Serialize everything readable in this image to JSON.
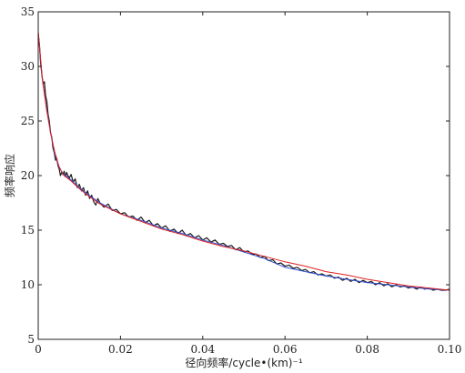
{
  "chart_data": {
    "type": "line",
    "xlabel": "径向频率/cycle•(km)⁻¹",
    "ylabel": "频率响应",
    "xlim": [
      0,
      0.1
    ],
    "ylim": [
      5,
      35
    ],
    "grid": false,
    "x_ticks": [
      "0",
      "0.02",
      "0.04",
      "0.06",
      "0.08",
      "0.10"
    ],
    "y_ticks": [
      "5",
      "10",
      "15",
      "20",
      "25",
      "30",
      "35"
    ],
    "series": [
      {
        "color": "#1a1a1a",
        "points": [
          [
            0.0,
            33.0
          ],
          [
            0.0003,
            32.0
          ],
          [
            0.0006,
            30.2
          ],
          [
            0.0009,
            29.2
          ],
          [
            0.0012,
            28.4
          ],
          [
            0.0015,
            28.6
          ],
          [
            0.0018,
            27.3
          ],
          [
            0.0021,
            26.8
          ],
          [
            0.0024,
            25.6
          ],
          [
            0.0027,
            25.0
          ],
          [
            0.003,
            23.9
          ],
          [
            0.0033,
            23.5
          ],
          [
            0.0036,
            22.5
          ],
          [
            0.0039,
            22.1
          ],
          [
            0.0042,
            21.4
          ],
          [
            0.0045,
            21.6
          ],
          [
            0.0048,
            20.9
          ],
          [
            0.0051,
            20.6
          ],
          [
            0.0054,
            20.0
          ],
          [
            0.0057,
            20.3
          ],
          [
            0.006,
            20.1
          ],
          [
            0.0063,
            20.4
          ],
          [
            0.0066,
            19.9
          ],
          [
            0.0069,
            20.3
          ],
          [
            0.0072,
            20.0
          ],
          [
            0.0076,
            19.8
          ],
          [
            0.008,
            20.1
          ],
          [
            0.0085,
            19.4
          ],
          [
            0.009,
            19.7
          ],
          [
            0.0095,
            18.9
          ],
          [
            0.01,
            19.2
          ],
          [
            0.0105,
            18.6
          ],
          [
            0.011,
            18.9
          ],
          [
            0.0115,
            18.2
          ],
          [
            0.012,
            18.6
          ],
          [
            0.0125,
            17.9
          ],
          [
            0.013,
            18.2
          ],
          [
            0.0135,
            17.6
          ],
          [
            0.014,
            17.3
          ],
          [
            0.0145,
            17.9
          ],
          [
            0.015,
            17.5
          ],
          [
            0.016,
            17.1
          ],
          [
            0.017,
            17.4
          ],
          [
            0.018,
            16.8
          ],
          [
            0.019,
            16.9
          ],
          [
            0.02,
            16.5
          ],
          [
            0.021,
            16.6
          ],
          [
            0.022,
            16.2
          ],
          [
            0.023,
            16.3
          ],
          [
            0.024,
            15.9
          ],
          [
            0.025,
            16.2
          ],
          [
            0.026,
            15.7
          ],
          [
            0.027,
            15.9
          ],
          [
            0.028,
            15.4
          ],
          [
            0.029,
            15.6
          ],
          [
            0.03,
            15.2
          ],
          [
            0.031,
            15.4
          ],
          [
            0.032,
            14.9
          ],
          [
            0.033,
            15.1
          ],
          [
            0.034,
            14.7
          ],
          [
            0.035,
            15.0
          ],
          [
            0.036,
            14.5
          ],
          [
            0.037,
            14.7
          ],
          [
            0.038,
            14.3
          ],
          [
            0.039,
            14.5
          ],
          [
            0.04,
            14.1
          ],
          [
            0.041,
            14.3
          ],
          [
            0.042,
            13.9
          ],
          [
            0.043,
            14.1
          ],
          [
            0.044,
            13.7
          ],
          [
            0.045,
            13.8
          ],
          [
            0.046,
            13.5
          ],
          [
            0.047,
            13.6
          ],
          [
            0.048,
            13.2
          ],
          [
            0.049,
            13.4
          ],
          [
            0.05,
            13.0
          ],
          [
            0.051,
            13.1
          ],
          [
            0.052,
            12.8
          ],
          [
            0.053,
            12.8
          ],
          [
            0.054,
            12.5
          ],
          [
            0.055,
            12.6
          ],
          [
            0.056,
            12.2
          ],
          [
            0.057,
            12.3
          ],
          [
            0.058,
            11.9
          ],
          [
            0.059,
            12.0
          ],
          [
            0.06,
            11.7
          ],
          [
            0.061,
            11.8
          ],
          [
            0.062,
            11.5
          ],
          [
            0.063,
            11.6
          ],
          [
            0.064,
            11.3
          ],
          [
            0.065,
            11.4
          ],
          [
            0.066,
            11.1
          ],
          [
            0.067,
            11.2
          ],
          [
            0.068,
            10.9
          ],
          [
            0.069,
            11.0
          ],
          [
            0.07,
            10.8
          ],
          [
            0.071,
            10.9
          ],
          [
            0.072,
            10.6
          ],
          [
            0.073,
            10.7
          ],
          [
            0.074,
            10.4
          ],
          [
            0.075,
            10.6
          ],
          [
            0.076,
            10.3
          ],
          [
            0.077,
            10.5
          ],
          [
            0.078,
            10.2
          ],
          [
            0.079,
            10.4
          ],
          [
            0.08,
            10.2
          ],
          [
            0.081,
            10.3
          ],
          [
            0.082,
            10.0
          ],
          [
            0.083,
            10.2
          ],
          [
            0.084,
            9.9
          ],
          [
            0.085,
            10.1
          ],
          [
            0.086,
            9.8
          ],
          [
            0.087,
            10.0
          ],
          [
            0.088,
            9.8
          ],
          [
            0.089,
            9.9
          ],
          [
            0.09,
            9.7
          ],
          [
            0.091,
            9.8
          ],
          [
            0.092,
            9.6
          ],
          [
            0.093,
            9.8
          ],
          [
            0.094,
            9.6
          ],
          [
            0.095,
            9.7
          ],
          [
            0.096,
            9.5
          ],
          [
            0.097,
            9.6
          ],
          [
            0.098,
            9.5
          ],
          [
            0.099,
            9.5
          ],
          [
            0.1,
            9.6
          ]
        ]
      },
      {
        "color": "#2f4fd0",
        "points": [
          [
            0.0,
            33.0
          ],
          [
            0.001,
            28.8
          ],
          [
            0.002,
            26.3
          ],
          [
            0.003,
            24.0
          ],
          [
            0.004,
            22.0
          ],
          [
            0.005,
            20.8
          ],
          [
            0.006,
            20.2
          ],
          [
            0.008,
            19.6
          ],
          [
            0.01,
            18.9
          ],
          [
            0.012,
            18.3
          ],
          [
            0.015,
            17.5
          ],
          [
            0.02,
            16.5
          ],
          [
            0.025,
            15.9
          ],
          [
            0.03,
            15.2
          ],
          [
            0.035,
            14.7
          ],
          [
            0.04,
            14.1
          ],
          [
            0.045,
            13.6
          ],
          [
            0.05,
            13.0
          ],
          [
            0.055,
            12.4
          ],
          [
            0.06,
            11.6
          ],
          [
            0.065,
            11.2
          ],
          [
            0.07,
            10.8
          ],
          [
            0.075,
            10.5
          ],
          [
            0.08,
            10.2
          ],
          [
            0.085,
            10.0
          ],
          [
            0.09,
            9.8
          ],
          [
            0.095,
            9.6
          ],
          [
            0.1,
            9.5
          ]
        ]
      },
      {
        "color": "#e02020",
        "points": [
          [
            0.0,
            33.2
          ],
          [
            0.001,
            28.9
          ],
          [
            0.002,
            26.1
          ],
          [
            0.003,
            23.9
          ],
          [
            0.004,
            22.2
          ],
          [
            0.005,
            20.9
          ],
          [
            0.006,
            20.1
          ],
          [
            0.008,
            19.5
          ],
          [
            0.01,
            18.8
          ],
          [
            0.012,
            18.2
          ],
          [
            0.015,
            17.4
          ],
          [
            0.02,
            16.5
          ],
          [
            0.025,
            15.8
          ],
          [
            0.03,
            15.1
          ],
          [
            0.035,
            14.6
          ],
          [
            0.04,
            14.0
          ],
          [
            0.045,
            13.5
          ],
          [
            0.05,
            13.1
          ],
          [
            0.055,
            12.6
          ],
          [
            0.06,
            12.1
          ],
          [
            0.065,
            11.7
          ],
          [
            0.07,
            11.2
          ],
          [
            0.075,
            10.9
          ],
          [
            0.08,
            10.5
          ],
          [
            0.085,
            10.2
          ],
          [
            0.09,
            9.9
          ],
          [
            0.095,
            9.7
          ],
          [
            0.1,
            9.5
          ]
        ]
      }
    ]
  }
}
